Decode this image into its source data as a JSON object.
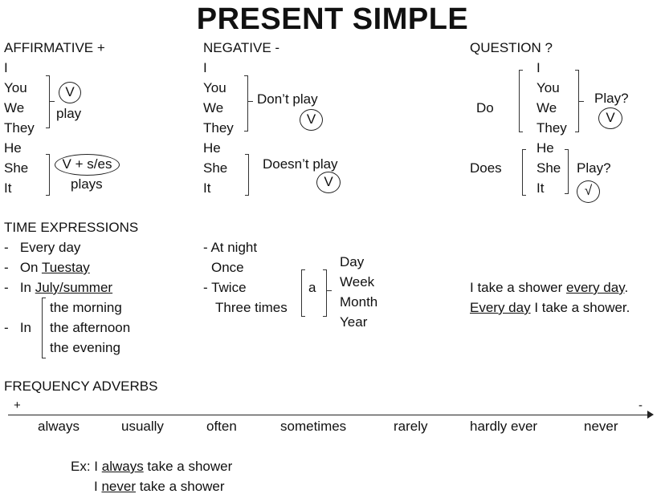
{
  "title": "PRESENT SIMPLE",
  "affirmative": {
    "heading": "AFFIRMATIVE +",
    "pronouns": [
      "I",
      "You",
      "We",
      "They",
      "He",
      "She",
      "It"
    ],
    "v": "V",
    "play": "play",
    "rule": "V + s/es",
    "plays": "plays"
  },
  "negative": {
    "heading": "NEGATIVE -",
    "pronouns": [
      "I",
      "You",
      "We",
      "They",
      "He",
      "She",
      "It"
    ],
    "dont": "Don’t play",
    "v1": "V",
    "doesnt": "Doesn’t play",
    "v2": "V"
  },
  "question": {
    "heading": "QUESTION ?",
    "do": "Do",
    "does": "Does",
    "pronouns1": [
      "I",
      "You",
      "We",
      "They"
    ],
    "pronouns2": [
      "He",
      "She",
      "It"
    ],
    "play1": "Play?",
    "v1": "V",
    "play2": "Play?",
    "v2": "√"
  },
  "time": {
    "heading": "TIME EXPRESSIONS",
    "left": [
      {
        "pre": "-   Every day",
        "u": "",
        "post": ""
      },
      {
        "pre": "-   On ",
        "u": "Tuestay",
        "post": ""
      },
      {
        "pre": "-   In ",
        "u": "July/summer",
        "post": ""
      }
    ],
    "in_label": "-   In",
    "in_items": [
      "the morning",
      "the afternoon",
      "the evening"
    ],
    "middle": [
      "- At night",
      "Once",
      "- Twice",
      "Three times"
    ],
    "a": "a",
    "periods": [
      "Day",
      "Week",
      "Month",
      "Year"
    ],
    "ex1": {
      "pre": "I take a shower ",
      "u": "every day",
      "post": "."
    },
    "ex2": {
      "pre": "",
      "u": "Every day",
      "post": " I take a shower."
    }
  },
  "frequency": {
    "heading": "FREQUENCY ADVERBS",
    "plus": "+",
    "minus": "-",
    "adverbs": [
      "always",
      "usually",
      "often",
      "sometimes",
      "rarely",
      "hardly ever",
      "never"
    ],
    "ex1": {
      "pre": "Ex: I ",
      "u": "always",
      "post": " take a shower"
    },
    "ex2": {
      "pre": "I ",
      "u": "never",
      "post": " take a shower"
    }
  }
}
